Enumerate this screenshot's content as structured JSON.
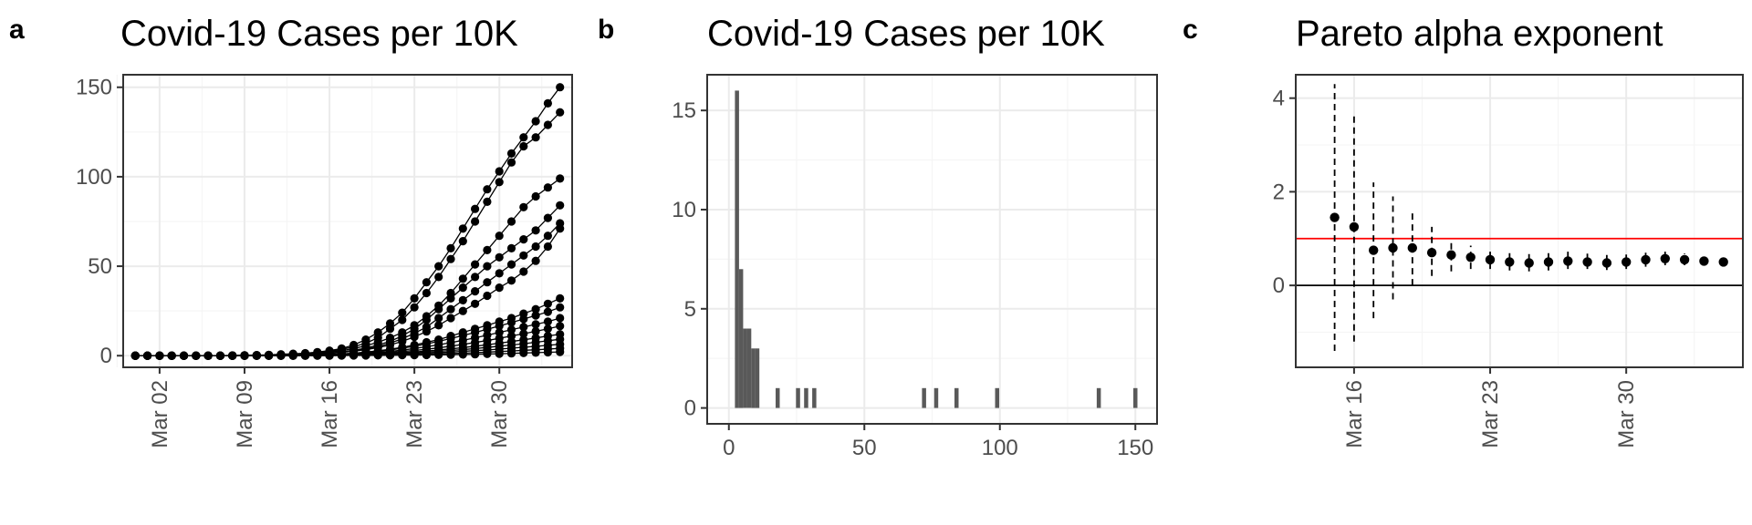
{
  "colors": {
    "panel_border": "#333333",
    "grid_major": "#ebebeb",
    "grid_minor": "#f5f5f5",
    "tick_text": "#4d4d4d",
    "points": "#000000",
    "bars": "#595959",
    "reference_line": "#ff0000",
    "zero_line": "#000000"
  },
  "chart_data": [
    {
      "panel_label": "a",
      "type": "line",
      "title": "Covid-19 Cases per 10K",
      "xlabel": "",
      "ylabel": "",
      "x_axis": "date",
      "x_tick_labels": [
        "Mar 02",
        "Mar 09",
        "Mar 16",
        "Mar 23",
        "Mar 30"
      ],
      "x_tick_dates": [
        "2020-03-02",
        "2020-03-09",
        "2020-03-16",
        "2020-03-23",
        "2020-03-30"
      ],
      "x_range": [
        "2020-02-28",
        "2020-04-05"
      ],
      "y_ticks": [
        0,
        50,
        100,
        150
      ],
      "ylim": [
        -6.5,
        157
      ],
      "x": [
        "2020-02-29",
        "2020-03-01",
        "2020-03-02",
        "2020-03-03",
        "2020-03-04",
        "2020-03-05",
        "2020-03-06",
        "2020-03-07",
        "2020-03-08",
        "2020-03-09",
        "2020-03-10",
        "2020-03-11",
        "2020-03-12",
        "2020-03-13",
        "2020-03-14",
        "2020-03-15",
        "2020-03-16",
        "2020-03-17",
        "2020-03-18",
        "2020-03-19",
        "2020-03-20",
        "2020-03-21",
        "2020-03-22",
        "2020-03-23",
        "2020-03-24",
        "2020-03-25",
        "2020-03-26",
        "2020-03-27",
        "2020-03-28",
        "2020-03-29",
        "2020-03-30",
        "2020-03-31",
        "2020-04-01",
        "2020-04-02",
        "2020-04-03",
        "2020-04-04"
      ],
      "marker": "filled circle",
      "grid": true,
      "legend": "none",
      "series": [
        {
          "values": [
            0,
            0,
            0,
            0,
            0,
            0,
            0,
            0,
            0.1,
            0.2,
            0.3,
            0.5,
            0.8,
            1.1,
            1.4,
            2,
            2.8,
            4,
            6,
            9,
            13,
            18,
            24,
            32,
            41,
            50,
            60,
            71,
            82,
            93,
            103,
            113,
            122,
            131,
            141,
            150
          ]
        },
        {
          "values": [
            0,
            0,
            0,
            0,
            0,
            0,
            0,
            0,
            0.1,
            0.2,
            0.3,
            0.4,
            0.6,
            0.9,
            1.2,
            1.7,
            2.4,
            3.5,
            5,
            7,
            10,
            15,
            20,
            27,
            35,
            44,
            54,
            64,
            75,
            86,
            97,
            108,
            117,
            122,
            129,
            136
          ]
        },
        {
          "values": [
            0,
            0,
            0,
            0,
            0,
            0,
            0,
            0,
            0,
            0.1,
            0.2,
            0.3,
            0.5,
            0.7,
            1,
            1.4,
            2,
            2.8,
            4,
            5.5,
            7.5,
            10,
            13,
            17,
            22,
            28,
            35,
            43,
            51,
            59,
            67,
            75,
            83,
            89,
            94,
            99
          ]
        },
        {
          "values": [
            0,
            0,
            0,
            0,
            0,
            0,
            0,
            0,
            0,
            0.1,
            0.2,
            0.3,
            0.4,
            0.6,
            0.8,
            1.1,
            1.5,
            2.1,
            3,
            4.2,
            6,
            8,
            11,
            15,
            20,
            26,
            32,
            38,
            44,
            50,
            55,
            60,
            65,
            70,
            77,
            84
          ]
        },
        {
          "values": [
            0,
            0,
            0,
            0,
            0,
            0,
            0,
            0,
            0,
            0.1,
            0.2,
            0.3,
            0.4,
            0.5,
            0.7,
            1,
            1.4,
            2,
            2.8,
            3.8,
            5,
            7,
            9.5,
            12.5,
            16,
            21,
            26,
            31,
            36,
            41,
            46,
            51,
            56,
            61,
            67,
            74
          ]
        },
        {
          "values": [
            0,
            0,
            0,
            0,
            0,
            0,
            0,
            0,
            0,
            0.1,
            0.1,
            0.2,
            0.3,
            0.5,
            0.7,
            0.9,
            1.3,
            1.8,
            2.5,
            3.4,
            4.5,
            6,
            8,
            10.5,
            13.5,
            17,
            21,
            25,
            29,
            33.5,
            38,
            42,
            47,
            53,
            61,
            71
          ]
        },
        {
          "values": [
            0,
            0,
            0,
            0,
            0,
            0,
            0,
            0,
            0,
            0,
            0.1,
            0.1,
            0.2,
            0.3,
            0.4,
            0.5,
            0.7,
            1,
            1.4,
            2,
            2.7,
            3.6,
            4.7,
            6,
            7.5,
            9,
            11,
            13,
            15,
            17,
            19,
            21,
            23.5,
            26,
            29,
            32
          ]
        },
        {
          "values": [
            0,
            0,
            0,
            0,
            0,
            0,
            0,
            0,
            0,
            0,
            0.1,
            0.1,
            0.2,
            0.3,
            0.4,
            0.5,
            0.7,
            1,
            1.3,
            1.8,
            2.4,
            3.2,
            4.2,
            5.3,
            6.6,
            8,
            9.6,
            11.3,
            13,
            14.8,
            16.6,
            18.5,
            20.5,
            22.5,
            24.5,
            27
          ]
        },
        {
          "values": [
            0,
            0,
            0,
            0,
            0,
            0,
            0,
            0,
            0,
            0,
            0,
            0.1,
            0.1,
            0.2,
            0.3,
            0.4,
            0.5,
            0.7,
            1,
            1.3,
            1.8,
            2.4,
            3.1,
            4,
            5,
            6.1,
            7.3,
            8.6,
            10,
            11.5,
            13,
            14.5,
            16,
            17.5,
            19,
            21
          ]
        },
        {
          "values": [
            0,
            0,
            0,
            0,
            0,
            0,
            0,
            0,
            0,
            0,
            0,
            0.1,
            0.1,
            0.2,
            0.2,
            0.3,
            0.4,
            0.6,
            0.8,
            1,
            1.4,
            1.8,
            2.3,
            2.9,
            3.6,
            4.4,
            5.3,
            6.3,
            7.4,
            8.5,
            9.7,
            11,
            12.3,
            13.6,
            15,
            16.5
          ]
        },
        {
          "values": [
            0,
            0,
            0,
            0,
            0,
            0,
            0,
            0,
            0,
            0,
            0,
            0,
            0.1,
            0.1,
            0.2,
            0.2,
            0.3,
            0.4,
            0.6,
            0.8,
            1,
            1.3,
            1.7,
            2.1,
            2.6,
            3.2,
            3.8,
            4.5,
            5.3,
            6.1,
            7,
            7.9,
            8.9,
            9.9,
            11,
            12
          ]
        },
        {
          "values": [
            0,
            0,
            0,
            0,
            0,
            0,
            0,
            0,
            0,
            0,
            0,
            0,
            0,
            0.1,
            0.1,
            0.2,
            0.2,
            0.3,
            0.4,
            0.6,
            0.8,
            1,
            1.3,
            1.6,
            2,
            2.4,
            2.9,
            3.4,
            4,
            4.6,
            5.3,
            6,
            6.7,
            7.5,
            8.3,
            9.2
          ]
        },
        {
          "values": [
            0,
            0,
            0,
            0,
            0,
            0,
            0,
            0,
            0,
            0,
            0,
            0,
            0,
            0,
            0.1,
            0.1,
            0.2,
            0.2,
            0.3,
            0.4,
            0.5,
            0.7,
            0.9,
            1.1,
            1.4,
            1.7,
            2,
            2.4,
            2.8,
            3.2,
            3.7,
            4.2,
            4.7,
            5.2,
            5.8,
            6.4
          ]
        },
        {
          "values": [
            0,
            0,
            0,
            0,
            0,
            0,
            0,
            0,
            0,
            0,
            0,
            0,
            0,
            0,
            0,
            0.1,
            0.1,
            0.1,
            0.2,
            0.2,
            0.3,
            0.4,
            0.5,
            0.6,
            0.8,
            1,
            1.2,
            1.4,
            1.7,
            2,
            2.3,
            2.6,
            3,
            3.3,
            3.7,
            4.1
          ]
        },
        {
          "values": [
            0,
            0,
            0,
            0,
            0,
            0,
            0,
            0,
            0,
            0,
            0,
            0,
            0,
            0,
            0,
            0,
            0,
            0.1,
            0.1,
            0.1,
            0.2,
            0.2,
            0.3,
            0.3,
            0.4,
            0.5,
            0.6,
            0.7,
            0.8,
            1,
            1.1,
            1.3,
            1.5,
            1.7,
            1.9,
            2.1
          ]
        }
      ]
    },
    {
      "panel_label": "b",
      "type": "bar",
      "title": "Covid-19 Cases per 10K",
      "xlabel": "",
      "ylabel": "",
      "x_ticks": [
        0,
        50,
        100,
        150
      ],
      "y_ticks": [
        0,
        5,
        10,
        15
      ],
      "xlim": [
        -8,
        158
      ],
      "ylim": [
        -0.8,
        16.8
      ],
      "bin_width": 1.5,
      "bins": [
        {
          "x": 3,
          "count": 16
        },
        {
          "x": 4.5,
          "count": 7
        },
        {
          "x": 6,
          "count": 4
        },
        {
          "x": 7.5,
          "count": 4
        },
        {
          "x": 9,
          "count": 3
        },
        {
          "x": 10.5,
          "count": 3
        },
        {
          "x": 18,
          "count": 1
        },
        {
          "x": 25.5,
          "count": 1
        },
        {
          "x": 28.5,
          "count": 1
        },
        {
          "x": 31.5,
          "count": 1
        },
        {
          "x": 72,
          "count": 1
        },
        {
          "x": 76.5,
          "count": 1
        },
        {
          "x": 84,
          "count": 1
        },
        {
          "x": 99,
          "count": 1
        },
        {
          "x": 136.5,
          "count": 1
        },
        {
          "x": 150,
          "count": 1
        }
      ],
      "grid": true,
      "legend": "none"
    },
    {
      "panel_label": "c",
      "type": "scatter",
      "title": "Pareto alpha exponent",
      "xlabel": "",
      "ylabel": "",
      "x_axis": "date",
      "x_tick_labels": [
        "Mar 16",
        "Mar 23",
        "Mar 30"
      ],
      "x_tick_dates": [
        "2020-03-16",
        "2020-03-23",
        "2020-03-30"
      ],
      "x_range": [
        "2020-03-13",
        "2020-04-05"
      ],
      "y_ticks": [
        0,
        2,
        4
      ],
      "ylim": [
        -1.75,
        4.5
      ],
      "reference_lines": [
        {
          "y": 1,
          "color": "#ff0000"
        },
        {
          "y": 0,
          "color": "#000000"
        }
      ],
      "error_bar_style": "dashed",
      "points": [
        {
          "x": "2020-03-15",
          "y": 1.45,
          "low": -1.4,
          "high": 4.3
        },
        {
          "x": "2020-03-16",
          "y": 1.25,
          "low": -1.2,
          "high": 3.7
        },
        {
          "x": "2020-03-17",
          "y": 0.75,
          "low": -0.7,
          "high": 2.2
        },
        {
          "x": "2020-03-18",
          "y": 0.8,
          "low": -0.3,
          "high": 1.9
        },
        {
          "x": "2020-03-19",
          "y": 0.8,
          "low": 0.0,
          "high": 1.6
        },
        {
          "x": "2020-03-20",
          "y": 0.7,
          "low": 0.2,
          "high": 1.25
        },
        {
          "x": "2020-03-21",
          "y": 0.65,
          "low": 0.3,
          "high": 1.0
        },
        {
          "x": "2020-03-22",
          "y": 0.6,
          "low": 0.35,
          "high": 0.85
        },
        {
          "x": "2020-03-23",
          "y": 0.55,
          "low": 0.35,
          "high": 0.75
        },
        {
          "x": "2020-03-24",
          "y": 0.5,
          "low": 0.32,
          "high": 0.7
        },
        {
          "x": "2020-03-25",
          "y": 0.48,
          "low": 0.3,
          "high": 0.68
        },
        {
          "x": "2020-03-26",
          "y": 0.5,
          "low": 0.32,
          "high": 0.7
        },
        {
          "x": "2020-03-27",
          "y": 0.52,
          "low": 0.35,
          "high": 0.72
        },
        {
          "x": "2020-03-28",
          "y": 0.5,
          "low": 0.35,
          "high": 0.68
        },
        {
          "x": "2020-03-29",
          "y": 0.48,
          "low": 0.33,
          "high": 0.65
        },
        {
          "x": "2020-03-30",
          "y": 0.5,
          "low": 0.35,
          "high": 0.66
        },
        {
          "x": "2020-03-31",
          "y": 0.55,
          "low": 0.4,
          "high": 0.7
        },
        {
          "x": "2020-04-01",
          "y": 0.57,
          "low": 0.43,
          "high": 0.72
        },
        {
          "x": "2020-04-02",
          "y": 0.55,
          "low": 0.43,
          "high": 0.68
        },
        {
          "x": "2020-04-03",
          "y": 0.52,
          "low": 0.42,
          "high": 0.63
        },
        {
          "x": "2020-04-04",
          "y": 0.5,
          "low": 0.41,
          "high": 0.6
        }
      ],
      "grid": true,
      "legend": "none"
    }
  ]
}
